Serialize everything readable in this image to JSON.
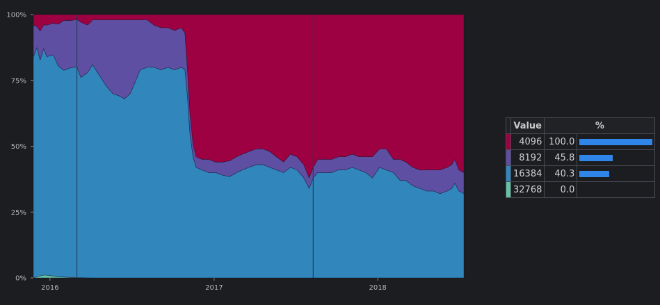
{
  "chart_data": {
    "type": "area",
    "stacked": true,
    "normalized": true,
    "y_ticks": [
      "100%",
      "75%",
      "50%",
      "25%",
      "0%"
    ],
    "x_ticks": [
      {
        "label": "2016",
        "date": "2016-01-01"
      },
      {
        "label": "2017",
        "date": "2017-01-01"
      },
      {
        "label": "2018",
        "date": "2018-01-01"
      }
    ],
    "x_range": [
      "2015-11-25",
      "2018-07-12"
    ],
    "ylim": [
      0,
      100
    ],
    "markers": [
      "2016-03-01",
      "2017-08-10"
    ],
    "series": [
      {
        "name": "32768",
        "color": "#66c2a5",
        "points": [
          [
            "2015-11-25",
            0
          ],
          [
            "2015-12-05",
            0.6
          ],
          [
            "2015-12-20",
            1.1
          ],
          [
            "2016-01-05",
            0.8
          ],
          [
            "2016-01-20",
            0.4
          ],
          [
            "2016-02-05",
            0.3
          ],
          [
            "2016-02-20",
            0.2
          ],
          [
            "2016-03-10",
            0.1
          ],
          [
            "2016-04-01",
            0
          ],
          [
            "2018-07-12",
            0
          ]
        ]
      },
      {
        "name": "16384",
        "color": "#3186bc",
        "points": [
          [
            "2015-11-25",
            84
          ],
          [
            "2015-12-03",
            87
          ],
          [
            "2015-12-10",
            82
          ],
          [
            "2015-12-18",
            86
          ],
          [
            "2015-12-25",
            83
          ],
          [
            "2016-01-08",
            84
          ],
          [
            "2016-01-20",
            80
          ],
          [
            "2016-02-01",
            78.5
          ],
          [
            "2016-02-15",
            79.5
          ],
          [
            "2016-03-01",
            80
          ],
          [
            "2016-03-10",
            76
          ],
          [
            "2016-03-25",
            78
          ],
          [
            "2016-04-05",
            81
          ],
          [
            "2016-04-20",
            77
          ],
          [
            "2016-05-05",
            73
          ],
          [
            "2016-05-20",
            70
          ],
          [
            "2016-06-05",
            69
          ],
          [
            "2016-06-15",
            68
          ],
          [
            "2016-06-28",
            70
          ],
          [
            "2016-07-08",
            74
          ],
          [
            "2016-07-20",
            79
          ],
          [
            "2016-08-05",
            80
          ],
          [
            "2016-08-20",
            80
          ],
          [
            "2016-09-05",
            79
          ],
          [
            "2016-09-20",
            80
          ],
          [
            "2016-10-05",
            79
          ],
          [
            "2016-10-20",
            80
          ],
          [
            "2016-10-28",
            79
          ],
          [
            "2016-11-03",
            68
          ],
          [
            "2016-11-08",
            55
          ],
          [
            "2016-11-15",
            46
          ],
          [
            "2016-11-22",
            42
          ],
          [
            "2016-12-05",
            41
          ],
          [
            "2016-12-20",
            40
          ],
          [
            "2017-01-05",
            40
          ],
          [
            "2017-01-20",
            39
          ],
          [
            "2017-02-05",
            38.5
          ],
          [
            "2017-02-20",
            40
          ],
          [
            "2017-03-05",
            41
          ],
          [
            "2017-03-20",
            42
          ],
          [
            "2017-04-05",
            43
          ],
          [
            "2017-04-20",
            43
          ],
          [
            "2017-05-05",
            42
          ],
          [
            "2017-05-20",
            41
          ],
          [
            "2017-06-05",
            40
          ],
          [
            "2017-06-20",
            42
          ],
          [
            "2017-07-05",
            41
          ],
          [
            "2017-07-20",
            38
          ],
          [
            "2017-08-01",
            34
          ],
          [
            "2017-08-10",
            38
          ],
          [
            "2017-08-20",
            40
          ],
          [
            "2017-09-05",
            40
          ],
          [
            "2017-09-20",
            40
          ],
          [
            "2017-10-05",
            41
          ],
          [
            "2017-10-20",
            41
          ],
          [
            "2017-11-05",
            42
          ],
          [
            "2017-11-20",
            41
          ],
          [
            "2017-12-05",
            40
          ],
          [
            "2017-12-20",
            38
          ],
          [
            "2018-01-05",
            42
          ],
          [
            "2018-01-20",
            41
          ],
          [
            "2018-02-05",
            40
          ],
          [
            "2018-02-20",
            37
          ],
          [
            "2018-03-05",
            37
          ],
          [
            "2018-03-20",
            35
          ],
          [
            "2018-04-05",
            34
          ],
          [
            "2018-04-20",
            33
          ],
          [
            "2018-05-05",
            33
          ],
          [
            "2018-05-20",
            32
          ],
          [
            "2018-06-05",
            33
          ],
          [
            "2018-06-15",
            34
          ],
          [
            "2018-06-22",
            36
          ],
          [
            "2018-07-01",
            33
          ],
          [
            "2018-07-12",
            32
          ]
        ]
      },
      {
        "name": "8192",
        "color": "#5e4fa2",
        "points": [
          [
            "2015-11-25",
            12
          ],
          [
            "2015-12-03",
            8
          ],
          [
            "2015-12-10",
            11
          ],
          [
            "2015-12-18",
            9
          ],
          [
            "2015-12-25",
            12
          ],
          [
            "2016-01-08",
            12
          ],
          [
            "2016-01-20",
            16
          ],
          [
            "2016-02-01",
            19
          ],
          [
            "2016-02-15",
            18
          ],
          [
            "2016-03-01",
            18
          ],
          [
            "2016-03-10",
            21
          ],
          [
            "2016-03-25",
            18
          ],
          [
            "2016-04-05",
            17
          ],
          [
            "2016-04-20",
            21
          ],
          [
            "2016-05-05",
            25
          ],
          [
            "2016-05-20",
            28
          ],
          [
            "2016-06-05",
            29
          ],
          [
            "2016-06-15",
            30
          ],
          [
            "2016-06-28",
            28
          ],
          [
            "2016-07-08",
            24
          ],
          [
            "2016-07-20",
            19
          ],
          [
            "2016-08-05",
            18
          ],
          [
            "2016-08-20",
            16
          ],
          [
            "2016-09-05",
            16
          ],
          [
            "2016-09-20",
            15
          ],
          [
            "2016-10-05",
            15
          ],
          [
            "2016-10-20",
            15
          ],
          [
            "2016-10-28",
            14
          ],
          [
            "2016-11-03",
            10
          ],
          [
            "2016-11-08",
            8
          ],
          [
            "2016-11-15",
            5
          ],
          [
            "2016-11-22",
            4
          ],
          [
            "2016-12-05",
            4
          ],
          [
            "2016-12-20",
            5
          ],
          [
            "2017-01-05",
            4
          ],
          [
            "2017-01-20",
            5
          ],
          [
            "2017-02-05",
            6
          ],
          [
            "2017-02-20",
            6
          ],
          [
            "2017-03-05",
            6
          ],
          [
            "2017-03-20",
            6
          ],
          [
            "2017-04-05",
            6
          ],
          [
            "2017-04-20",
            6
          ],
          [
            "2017-05-05",
            6
          ],
          [
            "2017-05-20",
            5
          ],
          [
            "2017-06-05",
            4
          ],
          [
            "2017-06-20",
            5
          ],
          [
            "2017-07-05",
            5
          ],
          [
            "2017-07-20",
            5
          ],
          [
            "2017-08-01",
            4
          ],
          [
            "2017-08-10",
            4
          ],
          [
            "2017-08-20",
            5
          ],
          [
            "2017-09-05",
            5
          ],
          [
            "2017-09-20",
            5
          ],
          [
            "2017-10-05",
            5
          ],
          [
            "2017-10-20",
            5
          ],
          [
            "2017-11-05",
            5
          ],
          [
            "2017-11-20",
            5
          ],
          [
            "2017-12-05",
            6
          ],
          [
            "2017-12-20",
            8
          ],
          [
            "2018-01-05",
            7
          ],
          [
            "2018-01-20",
            8
          ],
          [
            "2018-02-05",
            5
          ],
          [
            "2018-02-20",
            8
          ],
          [
            "2018-03-05",
            7
          ],
          [
            "2018-03-20",
            7
          ],
          [
            "2018-04-05",
            7
          ],
          [
            "2018-04-20",
            8
          ],
          [
            "2018-05-05",
            8
          ],
          [
            "2018-05-20",
            9
          ],
          [
            "2018-06-05",
            9
          ],
          [
            "2018-06-15",
            9
          ],
          [
            "2018-06-22",
            9
          ],
          [
            "2018-07-01",
            8
          ],
          [
            "2018-07-12",
            8
          ]
        ]
      },
      {
        "name": "4096",
        "color": "#9e0142",
        "fill_to_top": true,
        "points": []
      }
    ]
  },
  "legend": {
    "header_value": "Value",
    "header_pct": "%",
    "rows": [
      {
        "value": "4096",
        "pct": "100.0",
        "pct_num": 100.0,
        "color": "#9e0142"
      },
      {
        "value": "8192",
        "pct": "45.8",
        "pct_num": 45.8,
        "color": "#5e4fa2"
      },
      {
        "value": "16384",
        "pct": "40.3",
        "pct_num": 40.3,
        "color": "#3186bc"
      },
      {
        "value": "32768",
        "pct": "0.0",
        "pct_num": 0.0,
        "color": "#66c2a5"
      }
    ]
  }
}
